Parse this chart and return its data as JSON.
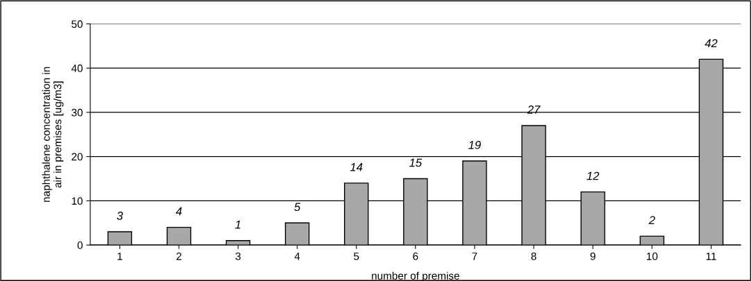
{
  "chart_data": {
    "type": "bar",
    "xlabel": "number of premise",
    "ylabel": "naphthalene concentration in\nair in premises [ug/m3]",
    "categories": [
      "1",
      "2",
      "3",
      "4",
      "5",
      "6",
      "7",
      "8",
      "9",
      "10",
      "11"
    ],
    "values": [
      3,
      4,
      1,
      5,
      14,
      15,
      19,
      27,
      12,
      2,
      42
    ],
    "color": "#a8a8a8",
    "ylim": [
      0,
      50
    ],
    "yticks": [
      0,
      10,
      20,
      30,
      40,
      50
    ],
    "grid": "y",
    "data_labels": true
  }
}
